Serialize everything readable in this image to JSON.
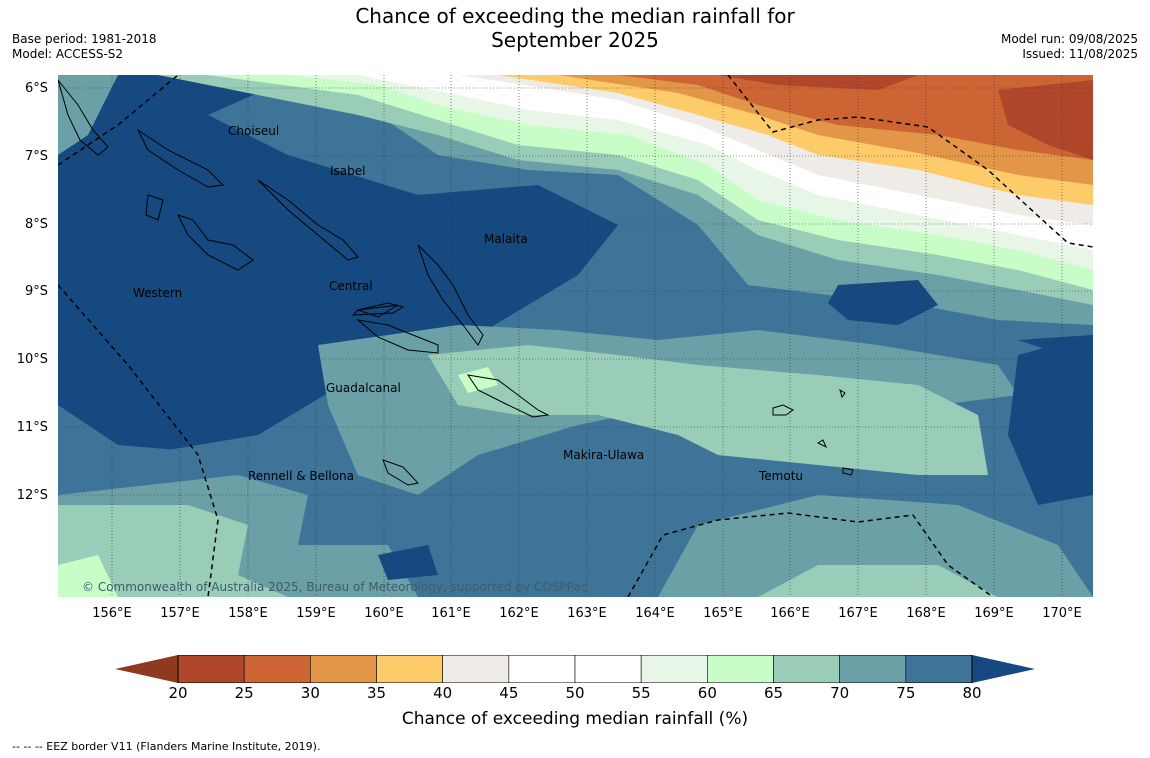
{
  "title_line1": "Chance of exceeding the median rainfall for",
  "title_line2": "September 2025",
  "base_period": "Base period: 1981-2018",
  "model": "Model: ACCESS-S2",
  "model_run": "Model run: 09/08/2025",
  "issued": "Issued: 11/08/2025",
  "lat_labels": [
    "6°S",
    "7°S",
    "8°S",
    "9°S",
    "10°S",
    "11°S",
    "12°S"
  ],
  "lon_labels": [
    "156°E",
    "157°E",
    "158°E",
    "159°E",
    "160°E",
    "161°E",
    "162°E",
    "163°E",
    "164°E",
    "165°E",
    "166°E",
    "167°E",
    "168°E",
    "169°E",
    "170°E"
  ],
  "regions": {
    "choiseul": "Choiseul",
    "isabel": "Isabel",
    "malaita": "Malaita",
    "western": "Western",
    "central": "Central",
    "guadalcanal": "Guadalcanal",
    "rennell": "Rennell & Bellona",
    "makira": "Makira-Ulawa",
    "temotu": "Temotu"
  },
  "copyright": "© Commonwealth of Australia 2025, Bureau of Meteorology, supported by COSPPac",
  "colorbar": {
    "ticks": [
      "20",
      "25",
      "30",
      "35",
      "40",
      "45",
      "50",
      "55",
      "60",
      "65",
      "70",
      "75",
      "80"
    ],
    "colors": [
      "#8e3a1e",
      "#b0472a",
      "#cc6533",
      "#e39647",
      "#fecb6a",
      "#efebe7",
      "#ffffff",
      "#ffffff",
      "#e8f6e8",
      "#c8fdc8",
      "#9acdb8",
      "#6aa0a6",
      "#3f7499",
      "#15497f"
    ],
    "label": "Chance of exceeding median rainfall (%)"
  },
  "footnote": "--  --  -- EEZ border V11 (Flanders Marine Institute, 2019)."
}
